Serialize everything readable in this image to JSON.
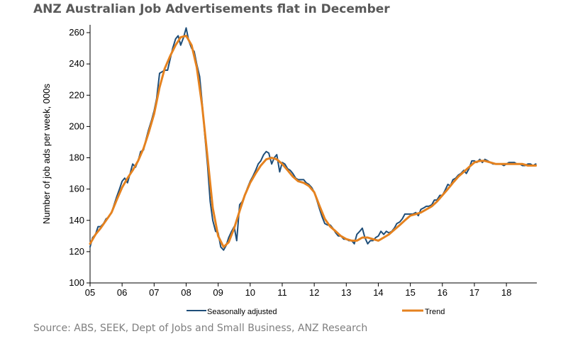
{
  "title": "ANZ Australian Job Advertisements flat in December",
  "source": "Source: ABS, SEEK, Dept of Jobs and Small Business, ANZ Research",
  "chart_data": {
    "type": "line",
    "ylabel": "Number of job ads per week, 000s",
    "ylim": [
      100,
      265
    ],
    "yticks": [
      100,
      120,
      140,
      160,
      180,
      200,
      220,
      240,
      260
    ],
    "xlim": [
      2005.0,
      2018.95
    ],
    "xticks": [
      {
        "value": 2005,
        "label": "05"
      },
      {
        "value": 2006,
        "label": "06"
      },
      {
        "value": 2007,
        "label": "07"
      },
      {
        "value": 2008,
        "label": "08"
      },
      {
        "value": 2009,
        "label": "09"
      },
      {
        "value": 2010,
        "label": "10"
      },
      {
        "value": 2011,
        "label": "11"
      },
      {
        "value": 2012,
        "label": "12"
      },
      {
        "value": 2013,
        "label": "13"
      },
      {
        "value": 2014,
        "label": "14"
      },
      {
        "value": 2015,
        "label": "15"
      },
      {
        "value": 2016,
        "label": "16"
      },
      {
        "value": 2017,
        "label": "17"
      },
      {
        "value": 2018,
        "label": "18"
      }
    ],
    "legend_position": "bottom",
    "series": [
      {
        "name": "Seasonally adjusted",
        "color": "#1f4e79",
        "points": [
          [
            2005.0,
            123
          ],
          [
            2005.08,
            129
          ],
          [
            2005.17,
            131
          ],
          [
            2005.25,
            136
          ],
          [
            2005.33,
            136
          ],
          [
            2005.42,
            138
          ],
          [
            2005.5,
            141
          ],
          [
            2005.58,
            142
          ],
          [
            2005.67,
            145
          ],
          [
            2005.75,
            150
          ],
          [
            2005.83,
            155
          ],
          [
            2005.92,
            160
          ],
          [
            2006.0,
            165
          ],
          [
            2006.08,
            167
          ],
          [
            2006.17,
            164
          ],
          [
            2006.25,
            170
          ],
          [
            2006.33,
            176
          ],
          [
            2006.42,
            174
          ],
          [
            2006.5,
            178
          ],
          [
            2006.58,
            184
          ],
          [
            2006.67,
            185
          ],
          [
            2006.75,
            192
          ],
          [
            2006.83,
            198
          ],
          [
            2006.92,
            204
          ],
          [
            2007.0,
            210
          ],
          [
            2007.08,
            218
          ],
          [
            2007.17,
            234
          ],
          [
            2007.25,
            235
          ],
          [
            2007.33,
            236
          ],
          [
            2007.42,
            236
          ],
          [
            2007.5,
            243
          ],
          [
            2007.58,
            250
          ],
          [
            2007.67,
            256
          ],
          [
            2007.75,
            258
          ],
          [
            2007.83,
            252
          ],
          [
            2007.92,
            257
          ],
          [
            2008.0,
            263
          ],
          [
            2008.08,
            255
          ],
          [
            2008.17,
            250
          ],
          [
            2008.25,
            248
          ],
          [
            2008.33,
            240
          ],
          [
            2008.42,
            232
          ],
          [
            2008.5,
            215
          ],
          [
            2008.58,
            195
          ],
          [
            2008.67,
            175
          ],
          [
            2008.75,
            152
          ],
          [
            2008.83,
            140
          ],
          [
            2008.92,
            133
          ],
          [
            2009.0,
            132
          ],
          [
            2009.08,
            123
          ],
          [
            2009.17,
            121
          ],
          [
            2009.25,
            124
          ],
          [
            2009.33,
            129
          ],
          [
            2009.42,
            133
          ],
          [
            2009.5,
            136
          ],
          [
            2009.58,
            127
          ],
          [
            2009.67,
            150
          ],
          [
            2009.75,
            152
          ],
          [
            2009.83,
            156
          ],
          [
            2009.92,
            161
          ],
          [
            2010.0,
            165
          ],
          [
            2010.08,
            168
          ],
          [
            2010.17,
            172
          ],
          [
            2010.25,
            176
          ],
          [
            2010.33,
            178
          ],
          [
            2010.42,
            182
          ],
          [
            2010.5,
            184
          ],
          [
            2010.58,
            183
          ],
          [
            2010.67,
            176
          ],
          [
            2010.75,
            180
          ],
          [
            2010.83,
            182
          ],
          [
            2010.92,
            171
          ],
          [
            2011.0,
            177
          ],
          [
            2011.08,
            176
          ],
          [
            2011.17,
            173
          ],
          [
            2011.25,
            172
          ],
          [
            2011.33,
            170
          ],
          [
            2011.42,
            167
          ],
          [
            2011.5,
            166
          ],
          [
            2011.58,
            166
          ],
          [
            2011.67,
            166
          ],
          [
            2011.75,
            164
          ],
          [
            2011.83,
            163
          ],
          [
            2011.92,
            161
          ],
          [
            2012.0,
            158
          ],
          [
            2012.08,
            153
          ],
          [
            2012.17,
            147
          ],
          [
            2012.25,
            142
          ],
          [
            2012.33,
            138
          ],
          [
            2012.42,
            137
          ],
          [
            2012.5,
            137
          ],
          [
            2012.58,
            135
          ],
          [
            2012.67,
            132
          ],
          [
            2012.75,
            130
          ],
          [
            2012.83,
            130
          ],
          [
            2012.92,
            128
          ],
          [
            2013.0,
            128
          ],
          [
            2013.08,
            127
          ],
          [
            2013.17,
            127
          ],
          [
            2013.25,
            125
          ],
          [
            2013.33,
            131
          ],
          [
            2013.42,
            133
          ],
          [
            2013.5,
            135
          ],
          [
            2013.58,
            129
          ],
          [
            2013.67,
            125
          ],
          [
            2013.75,
            127
          ],
          [
            2013.83,
            127
          ],
          [
            2013.92,
            129
          ],
          [
            2014.0,
            130
          ],
          [
            2014.08,
            133
          ],
          [
            2014.17,
            131
          ],
          [
            2014.25,
            133
          ],
          [
            2014.33,
            132
          ],
          [
            2014.42,
            133
          ],
          [
            2014.5,
            135
          ],
          [
            2014.58,
            138
          ],
          [
            2014.67,
            139
          ],
          [
            2014.75,
            141
          ],
          [
            2014.83,
            144
          ],
          [
            2014.92,
            144
          ],
          [
            2015.0,
            144
          ],
          [
            2015.08,
            144
          ],
          [
            2015.17,
            145
          ],
          [
            2015.25,
            143
          ],
          [
            2015.33,
            147
          ],
          [
            2015.42,
            148
          ],
          [
            2015.5,
            149
          ],
          [
            2015.58,
            149
          ],
          [
            2015.67,
            150
          ],
          [
            2015.75,
            153
          ],
          [
            2015.83,
            153
          ],
          [
            2015.92,
            156
          ],
          [
            2016.0,
            156
          ],
          [
            2016.08,
            159
          ],
          [
            2016.17,
            163
          ],
          [
            2016.25,
            162
          ],
          [
            2016.33,
            166
          ],
          [
            2016.42,
            167
          ],
          [
            2016.5,
            169
          ],
          [
            2016.58,
            170
          ],
          [
            2016.67,
            172
          ],
          [
            2016.75,
            170
          ],
          [
            2016.83,
            173
          ],
          [
            2016.92,
            178
          ],
          [
            2017.0,
            178
          ],
          [
            2017.08,
            177
          ],
          [
            2017.17,
            179
          ],
          [
            2017.25,
            177
          ],
          [
            2017.33,
            179
          ],
          [
            2017.42,
            178
          ],
          [
            2017.5,
            177
          ],
          [
            2017.58,
            176
          ],
          [
            2017.67,
            176
          ],
          [
            2017.75,
            176
          ],
          [
            2017.83,
            176
          ],
          [
            2017.92,
            175
          ],
          [
            2018.0,
            176
          ],
          [
            2018.08,
            177
          ],
          [
            2018.17,
            177
          ],
          [
            2018.25,
            177
          ],
          [
            2018.33,
            176
          ],
          [
            2018.42,
            176
          ],
          [
            2018.5,
            175
          ],
          [
            2018.58,
            175
          ],
          [
            2018.67,
            176
          ],
          [
            2018.75,
            176
          ],
          [
            2018.83,
            175
          ],
          [
            2018.92,
            176
          ]
        ]
      },
      {
        "name": "Trend",
        "color": "#e5821f",
        "points": [
          [
            2005.0,
            125
          ],
          [
            2005.17,
            131
          ],
          [
            2005.33,
            135
          ],
          [
            2005.5,
            140
          ],
          [
            2005.67,
            145
          ],
          [
            2005.83,
            153
          ],
          [
            2006.0,
            161
          ],
          [
            2006.17,
            167
          ],
          [
            2006.33,
            172
          ],
          [
            2006.5,
            178
          ],
          [
            2006.67,
            186
          ],
          [
            2006.83,
            196
          ],
          [
            2007.0,
            208
          ],
          [
            2007.17,
            225
          ],
          [
            2007.33,
            237
          ],
          [
            2007.5,
            245
          ],
          [
            2007.67,
            252
          ],
          [
            2007.83,
            257
          ],
          [
            2008.0,
            258
          ],
          [
            2008.17,
            252
          ],
          [
            2008.33,
            238
          ],
          [
            2008.5,
            213
          ],
          [
            2008.67,
            180
          ],
          [
            2008.83,
            148
          ],
          [
            2009.0,
            130
          ],
          [
            2009.17,
            123
          ],
          [
            2009.33,
            126
          ],
          [
            2009.5,
            135
          ],
          [
            2009.67,
            146
          ],
          [
            2009.83,
            156
          ],
          [
            2010.0,
            164
          ],
          [
            2010.17,
            170
          ],
          [
            2010.33,
            175
          ],
          [
            2010.5,
            179
          ],
          [
            2010.67,
            180
          ],
          [
            2010.83,
            179
          ],
          [
            2011.0,
            176
          ],
          [
            2011.17,
            172
          ],
          [
            2011.33,
            168
          ],
          [
            2011.5,
            165
          ],
          [
            2011.67,
            164
          ],
          [
            2011.83,
            162
          ],
          [
            2012.0,
            158
          ],
          [
            2012.17,
            149
          ],
          [
            2012.33,
            141
          ],
          [
            2012.5,
            136
          ],
          [
            2012.67,
            133
          ],
          [
            2012.83,
            130
          ],
          [
            2013.0,
            128
          ],
          [
            2013.17,
            127
          ],
          [
            2013.33,
            127
          ],
          [
            2013.5,
            129
          ],
          [
            2013.67,
            129
          ],
          [
            2013.83,
            128
          ],
          [
            2014.0,
            127
          ],
          [
            2014.17,
            129
          ],
          [
            2014.33,
            131
          ],
          [
            2014.5,
            134
          ],
          [
            2014.67,
            137
          ],
          [
            2014.83,
            140
          ],
          [
            2015.0,
            143
          ],
          [
            2015.17,
            144
          ],
          [
            2015.33,
            145
          ],
          [
            2015.5,
            147
          ],
          [
            2015.67,
            149
          ],
          [
            2015.83,
            152
          ],
          [
            2016.0,
            156
          ],
          [
            2016.17,
            160
          ],
          [
            2016.33,
            164
          ],
          [
            2016.5,
            168
          ],
          [
            2016.67,
            171
          ],
          [
            2016.83,
            174
          ],
          [
            2017.0,
            177
          ],
          [
            2017.17,
            178
          ],
          [
            2017.33,
            178
          ],
          [
            2017.5,
            177
          ],
          [
            2017.67,
            176
          ],
          [
            2017.83,
            176
          ],
          [
            2018.0,
            176
          ],
          [
            2018.17,
            176
          ],
          [
            2018.33,
            176
          ],
          [
            2018.5,
            176
          ],
          [
            2018.67,
            175
          ],
          [
            2018.83,
            175
          ],
          [
            2018.92,
            175
          ]
        ]
      }
    ]
  }
}
